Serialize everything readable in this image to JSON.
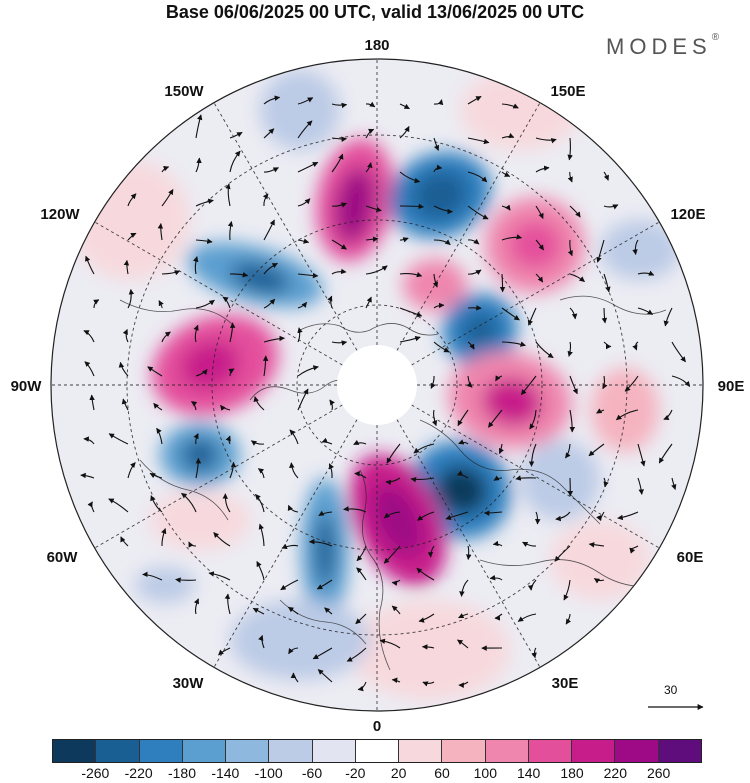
{
  "title": "Base 06/06/2025 00 UTC, valid 13/06/2025 00 UTC",
  "brand": {
    "name": "MODES",
    "mark": "®"
  },
  "longitude_labels": {
    "top": "180",
    "top_left": "150W",
    "top_right": "150E",
    "upper_left": "120W",
    "upper_right": "120E",
    "left": "90W",
    "right": "90E",
    "lower_left": "60W",
    "lower_right": "60E",
    "bottom_left": "30W",
    "bottom_right": "30E",
    "bottom": "0"
  },
  "reference_vector": {
    "label": "30",
    "icon": "arrow-right-icon"
  },
  "colorbar": {
    "colors": [
      "#0d3a5c",
      "#1a5f94",
      "#2f7fbf",
      "#5b9fd0",
      "#8fb8df",
      "#bccbe6",
      "#e3e4f2",
      "#ffffff",
      "#f7d9dd",
      "#f5b3c0",
      "#ef86ad",
      "#e44f9c",
      "#c71d8a",
      "#9e0a85",
      "#5f0c7d"
    ],
    "labels": [
      "-260",
      "-220",
      "-180",
      "-140",
      "-100",
      "-60",
      "-20",
      "20",
      "60",
      "100",
      "140",
      "180",
      "220",
      "260"
    ]
  }
}
